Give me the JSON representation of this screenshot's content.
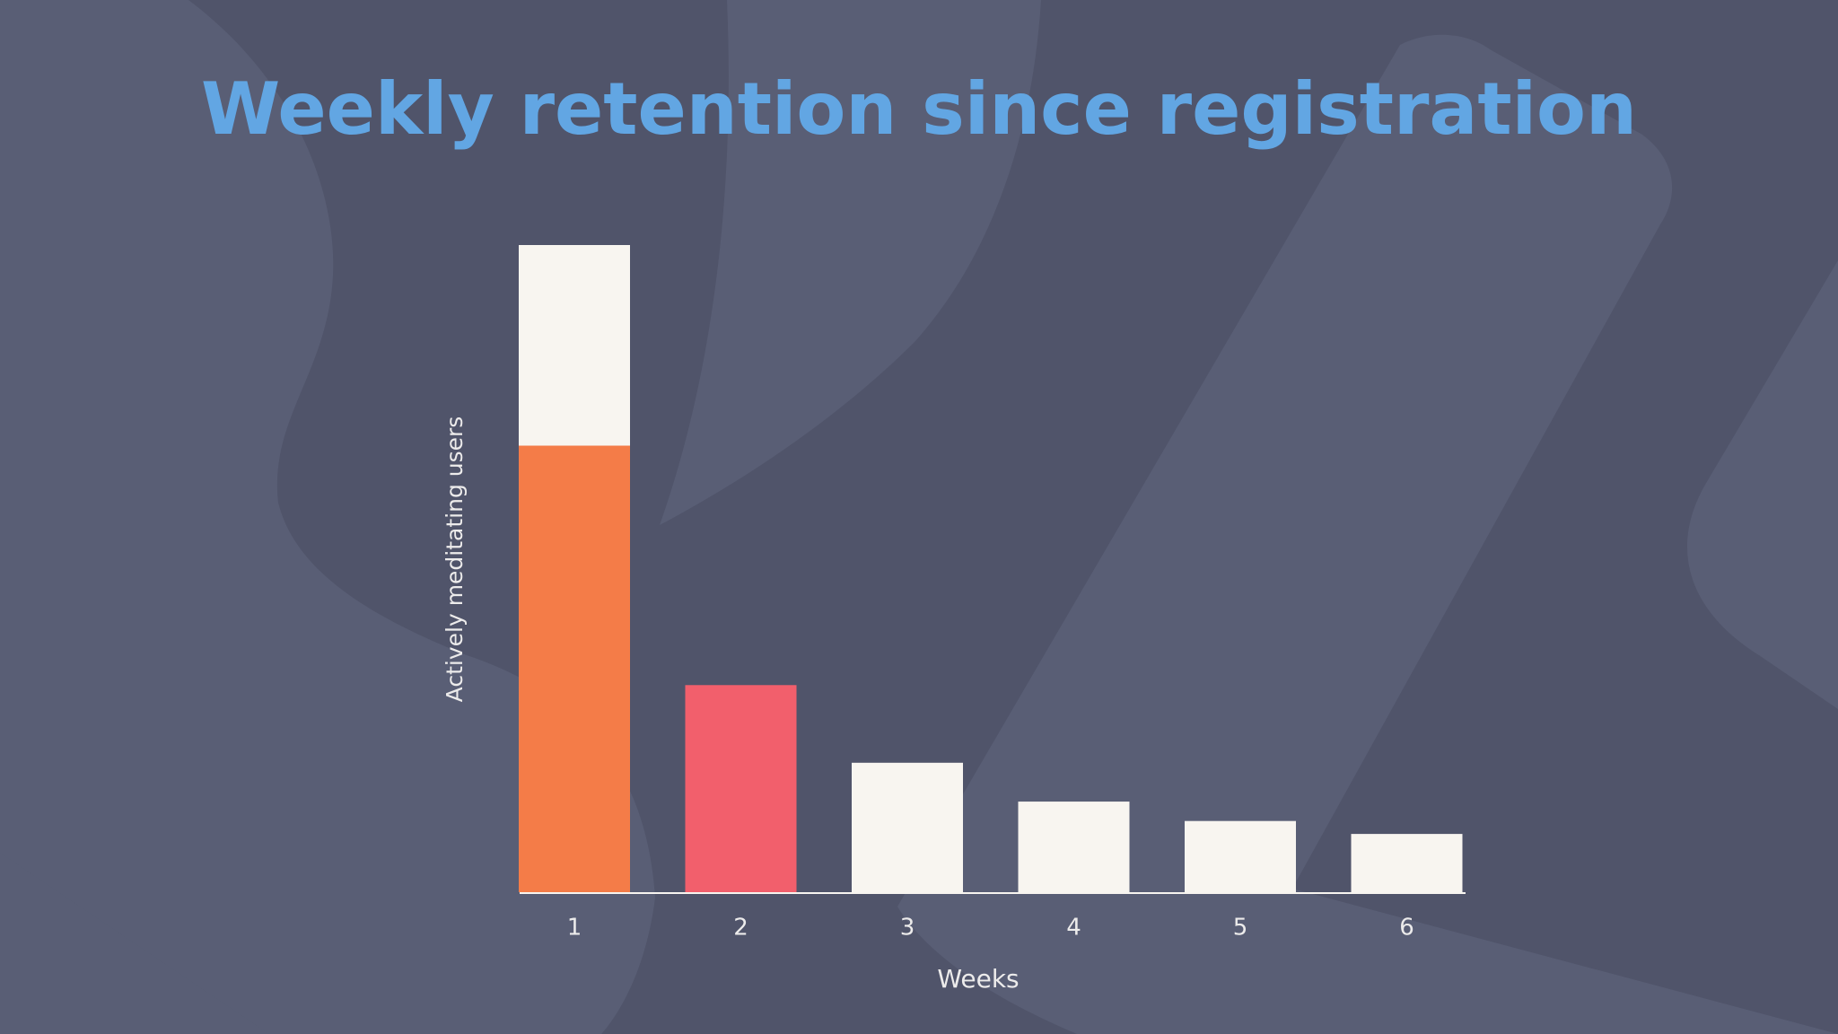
{
  "chart_data": {
    "type": "bar",
    "stacked": true,
    "title": "Weekly retention since registration",
    "x_label": "Weeks",
    "y_label": "Actively meditating users",
    "categories": [
      "1",
      "2",
      "3",
      "4",
      "5",
      "6"
    ],
    "series": [
      {
        "values": [
          69,
          32,
          20,
          14,
          11,
          9
        ],
        "colors": [
          "#f47c48",
          "#f25f6c",
          "#f8f5f0",
          "#f8f5f0",
          "#f8f5f0",
          "#f8f5f0"
        ]
      },
      {
        "values": [
          31,
          null,
          null,
          null,
          null,
          null
        ],
        "color": "#f8f5f0"
      }
    ]
  }
}
